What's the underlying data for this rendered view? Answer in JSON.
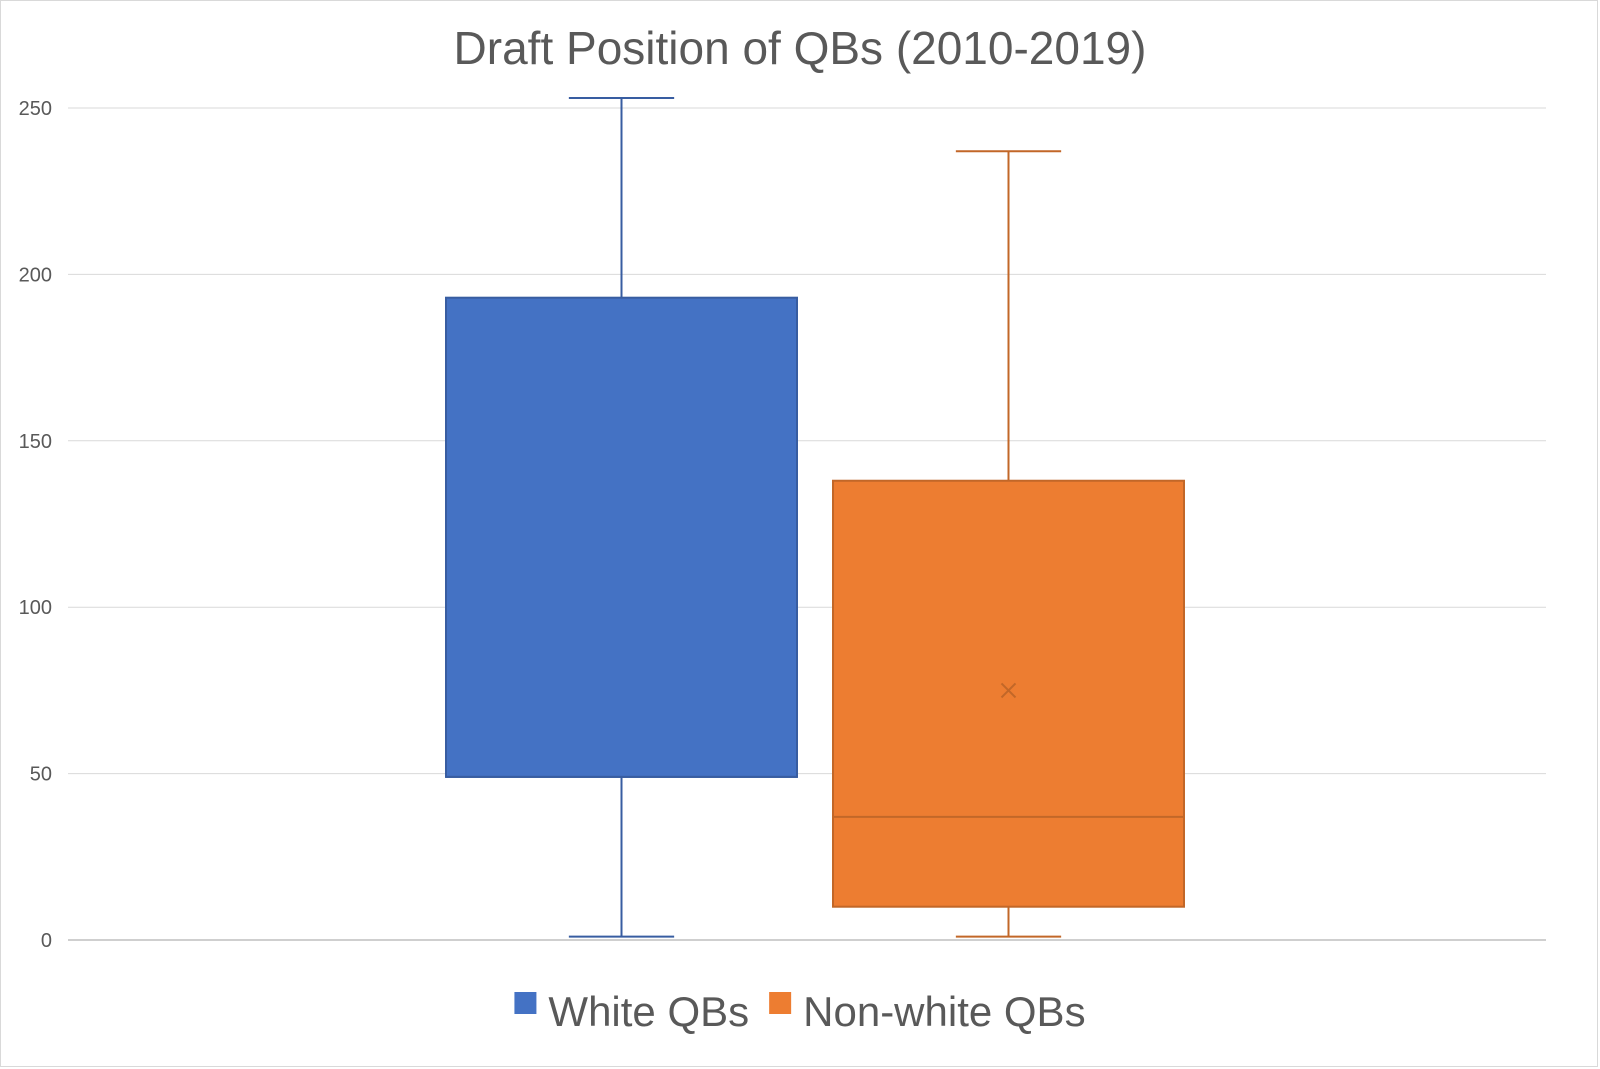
{
  "chart_data": {
    "type": "box",
    "title": "Draft Position of QBs (2010-2019)",
    "xlabel": "",
    "ylabel": "",
    "ylim": [
      0,
      250
    ],
    "yticks": [
      0,
      50,
      100,
      150,
      200,
      250
    ],
    "grid": true,
    "legend_position": "bottom",
    "series": [
      {
        "name": "White QBs",
        "color": "#4472C4",
        "min": 1,
        "q1": 49,
        "median": 49,
        "q3": 193,
        "max": 253
      },
      {
        "name": "Non-white QBs",
        "color": "#ED7D31",
        "min": 1,
        "q1": 10,
        "median": 37,
        "q3": 138,
        "max": 237,
        "mean": 75
      }
    ]
  }
}
